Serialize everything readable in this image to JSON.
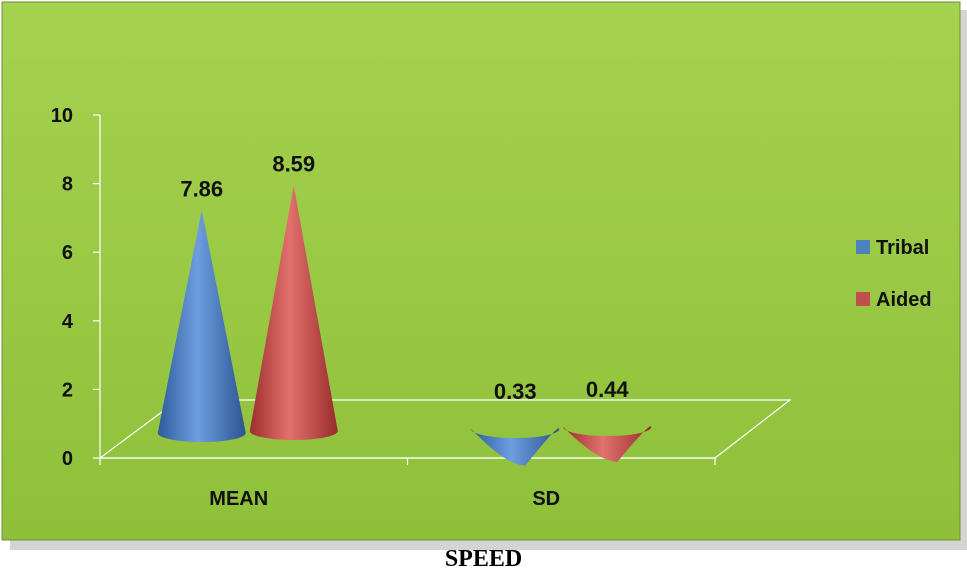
{
  "chart_data": {
    "type": "bar",
    "style": "3d-cone",
    "categories": [
      "MEAN",
      "SD"
    ],
    "series": [
      {
        "name": "Tribal",
        "values": [
          7.86,
          0.33
        ],
        "color": "#4f81bd"
      },
      {
        "name": "Aided",
        "values": [
          8.59,
          0.44
        ],
        "color": "#c0504d"
      }
    ],
    "data_labels": [
      [
        "7.86",
        "0.33"
      ],
      [
        "8.59",
        "0.44"
      ]
    ],
    "y_ticks": [
      "0",
      "2",
      "4",
      "6",
      "8",
      "10"
    ],
    "ylim": [
      0,
      10
    ],
    "grid": false,
    "legend_position": "right",
    "background_color": "#9acd42",
    "caption": "SPEED"
  }
}
